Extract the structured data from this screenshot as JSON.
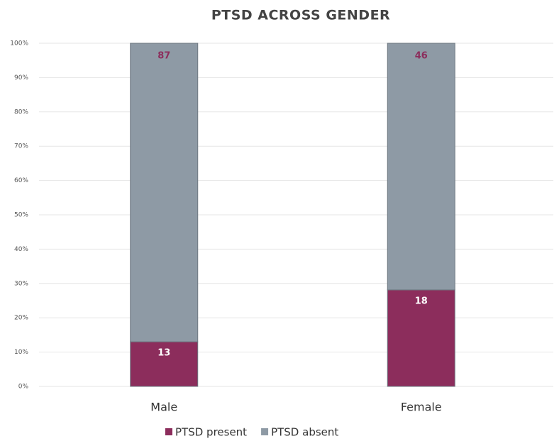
{
  "chart_data": {
    "type": "bar",
    "stacking": "percent",
    "title": "PTSD ACROSS GENDER",
    "categories": [
      "Male",
      "Female"
    ],
    "series": [
      {
        "name": "PTSD present",
        "color": "#8c2d5c",
        "values": [
          13,
          18
        ]
      },
      {
        "name": "PTSD absent",
        "color": "#8e9aa5",
        "values": [
          87,
          46
        ]
      }
    ],
    "ylim": [
      0,
      100
    ],
    "yticks": [
      {
        "value": 0,
        "label": "0%"
      },
      {
        "value": 10,
        "label": "10%"
      },
      {
        "value": 20,
        "label": "20%"
      },
      {
        "value": 30,
        "label": "30%"
      },
      {
        "value": 40,
        "label": "40%"
      },
      {
        "value": 50,
        "label": "50%"
      },
      {
        "value": 60,
        "label": "60%"
      },
      {
        "value": 70,
        "label": "70%"
      },
      {
        "value": 80,
        "label": "80%"
      },
      {
        "value": 90,
        "label": "90%"
      },
      {
        "value": 100,
        "label": "100%"
      }
    ],
    "grid": true,
    "legend": "bottom"
  }
}
